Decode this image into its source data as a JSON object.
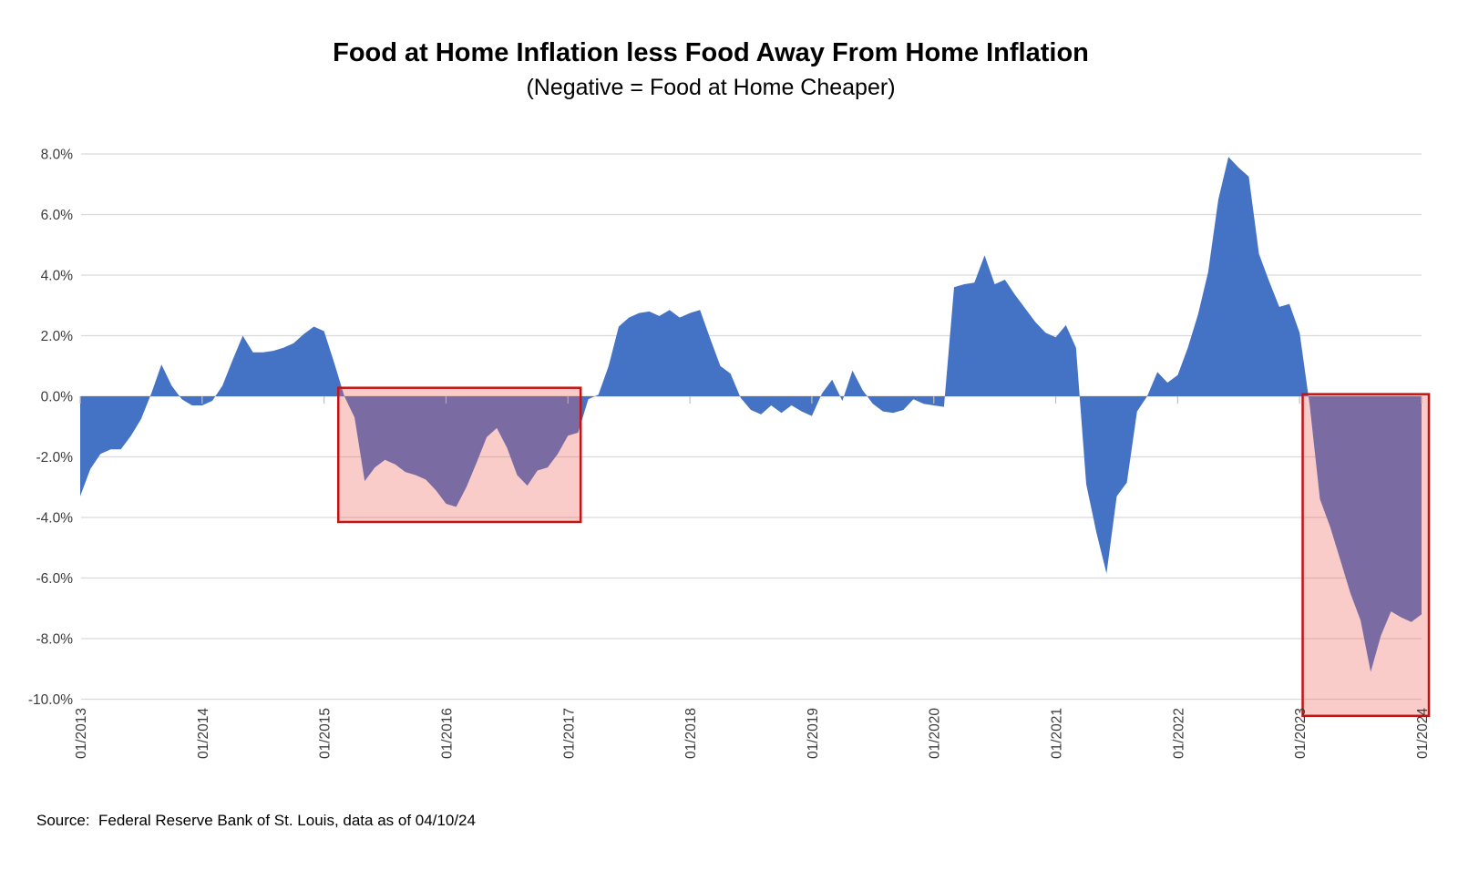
{
  "header": {
    "title": "Food at Home Inflation less Food Away From Home Inflation",
    "subtitle": "(Negative = Food at Home Cheaper)"
  },
  "footer": {
    "source": "Source:  Federal Reserve Bank of St. Louis, data as of 04/10/24"
  },
  "chart_data": {
    "type": "area",
    "title": "Food at Home Inflation less Food Away From Home Inflation",
    "subtitle": "(Negative = Food at Home Cheaper)",
    "x_start": "01/2013",
    "x_end": "01/2024",
    "x_tick_labels": [
      "01/2013",
      "01/2014",
      "01/2015",
      "01/2016",
      "01/2017",
      "01/2018",
      "01/2019",
      "01/2020",
      "01/2021",
      "01/2022",
      "01/2023",
      "01/2024"
    ],
    "y_tick_labels": [
      "8.0%",
      "6.0%",
      "4.0%",
      "2.0%",
      "0.0%",
      "-2.0%",
      "-4.0%",
      "-6.0%",
      "-8.0%",
      "-10.0%"
    ],
    "y_tick_values": [
      8,
      6,
      4,
      2,
      0,
      -2,
      -4,
      -6,
      -8,
      -10
    ],
    "ylim": [
      -10.6,
      8.2
    ],
    "grid": "horizontal",
    "legend": "none",
    "values_monthly_pct": [
      -3.3,
      -2.4,
      -1.9,
      -1.75,
      -1.75,
      -1.3,
      -0.75,
      0.1,
      1.05,
      0.35,
      -0.1,
      -0.3,
      -0.3,
      -0.15,
      0.35,
      1.2,
      2.0,
      1.45,
      1.45,
      1.5,
      1.6,
      1.75,
      2.05,
      2.3,
      2.15,
      1.1,
      0.0,
      -0.7,
      -2.8,
      -2.35,
      -2.1,
      -2.25,
      -2.5,
      -2.6,
      -2.75,
      -3.1,
      -3.55,
      -3.65,
      -3.0,
      -2.2,
      -1.35,
      -1.05,
      -1.7,
      -2.6,
      -2.95,
      -2.45,
      -2.35,
      -1.9,
      -1.3,
      -1.2,
      -0.1,
      0.05,
      1.0,
      2.3,
      2.6,
      2.75,
      2.8,
      2.65,
      2.85,
      2.6,
      2.75,
      2.85,
      1.9,
      1.0,
      0.75,
      -0.05,
      -0.45,
      -0.6,
      -0.3,
      -0.55,
      -0.3,
      -0.5,
      -0.65,
      0.1,
      0.55,
      -0.15,
      0.85,
      0.2,
      -0.25,
      -0.5,
      -0.55,
      -0.45,
      -0.1,
      -0.25,
      -0.3,
      -0.35,
      3.6,
      3.7,
      3.75,
      4.65,
      3.7,
      3.85,
      3.35,
      2.9,
      2.45,
      2.1,
      1.95,
      2.35,
      1.6,
      -2.9,
      -4.5,
      -5.85,
      -3.3,
      -2.85,
      -0.5,
      0.0,
      0.8,
      0.45,
      0.7,
      1.6,
      2.7,
      4.1,
      6.5,
      7.9,
      7.55,
      7.25,
      4.7,
      3.8,
      2.95,
      3.05,
      2.1,
      -0.3,
      -3.4,
      -4.3,
      -5.4,
      -6.5,
      -7.4,
      -9.1,
      -7.9,
      -7.1,
      -7.3,
      -7.45,
      -7.2
    ],
    "series_color": "#4472C4",
    "gridline_color": "#D9D9D9",
    "tick_color": "#BFBFBF",
    "axis_label_color": "#3B3B3B",
    "highlight_boxes": [
      {
        "name": "negative-period-2015-2017",
        "from_month_index": 25.4,
        "to_month_index": 49.25,
        "top_value": 0.28,
        "bottom_value": -4.15
      },
      {
        "name": "negative-period-2023-2024",
        "from_month_index": 120.3,
        "to_month_index": 132.72,
        "top_value": 0.07,
        "bottom_value": -10.55
      }
    ],
    "highlight_fill_rgba": [
      236,
      96,
      90,
      0.32
    ],
    "highlight_border_color": "#C21414"
  }
}
